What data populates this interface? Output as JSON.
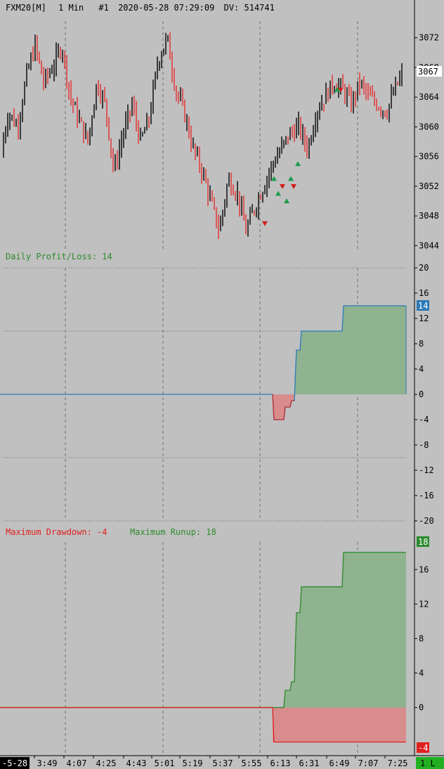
{
  "header": {
    "symbol": "FXM20[M]",
    "interval": "1 Min",
    "chart_no": "#1",
    "datetime": "2020-05-28 07:29:09",
    "dv_label": "DV: 514741"
  },
  "colors": {
    "background": "#c0c0c0",
    "bull": "#1a1a1a",
    "bear": "#e04040",
    "green": "#2d8a2d",
    "red": "#e02020",
    "green_fill": "#8fb28f",
    "red_fill": "#d98c8c",
    "blue": "#2a7ab8",
    "grid": "#8a8a8a"
  },
  "time_axis": {
    "labels": [
      "3:49",
      "4:07",
      "4:25",
      "4:43",
      "5:01",
      "5:19",
      "5:37",
      "5:55",
      "6:13",
      "6:31",
      "6:49",
      "7:07",
      "7:25"
    ],
    "date_badge": "-5-28",
    "position_badge": "1 L"
  },
  "chart_data": [
    {
      "type": "candlestick",
      "title": "FXM20[M] 1 Min #1 2020-05-28 07:29:09 DV: 514741",
      "ylim": [
        3043,
        3075
      ],
      "yticks": [
        3044,
        3048,
        3052,
        3056,
        3060,
        3064,
        3068,
        3072
      ],
      "last_price": 3067,
      "last_price_label": "3067",
      "close_path": [
        [
          0,
          3056
        ],
        [
          12,
          3062
        ],
        [
          25,
          3060
        ],
        [
          38,
          3067
        ],
        [
          50,
          3071
        ],
        [
          62,
          3066
        ],
        [
          75,
          3068
        ],
        [
          88,
          3071
        ],
        [
          100,
          3064
        ],
        [
          112,
          3061
        ],
        [
          125,
          3058
        ],
        [
          138,
          3066
        ],
        [
          150,
          3063
        ],
        [
          162,
          3054
        ],
        [
          175,
          3059
        ],
        [
          188,
          3063
        ],
        [
          200,
          3058
        ],
        [
          212,
          3061
        ],
        [
          225,
          3069
        ],
        [
          238,
          3072
        ],
        [
          250,
          3065
        ],
        [
          262,
          3062
        ],
        [
          275,
          3057
        ],
        [
          288,
          3054
        ],
        [
          300,
          3050
        ],
        [
          312,
          3046
        ],
        [
          325,
          3053
        ],
        [
          338,
          3051
        ],
        [
          350,
          3046
        ],
        [
          362,
          3049
        ],
        [
          375,
          3052
        ],
        [
          388,
          3055
        ],
        [
          400,
          3057
        ],
        [
          412,
          3059
        ],
        [
          425,
          3060
        ],
        [
          438,
          3057
        ],
        [
          450,
          3062
        ],
        [
          462,
          3064
        ],
        [
          475,
          3066
        ],
        [
          488,
          3065
        ],
        [
          500,
          3063
        ],
        [
          512,
          3066
        ],
        [
          525,
          3064
        ],
        [
          538,
          3063
        ],
        [
          550,
          3062
        ],
        [
          562,
          3065
        ],
        [
          572,
          3067
        ]
      ]
    },
    {
      "type": "area",
      "title": "Daily Profit/Loss: 14",
      "title_label": "Daily Profit/Loss: 14",
      "ylim": [
        -20,
        20
      ],
      "yticks": [
        20,
        16,
        12,
        8,
        4,
        0,
        -4,
        -8,
        -12,
        -16,
        -20
      ],
      "last_value": 14,
      "last_value_label": "14",
      "steps": [
        [
          0,
          0
        ],
        [
          388,
          0
        ],
        [
          390,
          -4
        ],
        [
          404,
          -4
        ],
        [
          406,
          -2
        ],
        [
          413,
          -2
        ],
        [
          415,
          -1
        ],
        [
          419,
          -1
        ],
        [
          420,
          2
        ],
        [
          422,
          7
        ],
        [
          427,
          7
        ],
        [
          429,
          10
        ],
        [
          487,
          10
        ],
        [
          489,
          14
        ],
        [
          578,
          14
        ]
      ]
    },
    {
      "type": "area",
      "title": "Maximum Drawdown: -4 Maximum Runup: 18",
      "drawdown_label": "Maximum Drawdown: -4",
      "runup_label": "Maximum Runup: 18",
      "ylim": [
        -4.6,
        19.2
      ],
      "yticks": [
        16,
        12,
        8,
        4,
        0
      ],
      "max_drawdown": -4,
      "max_runup": 18,
      "runup_badge": "18",
      "drawdown_badge": "-4",
      "runup_steps": [
        [
          0,
          0
        ],
        [
          404,
          0
        ],
        [
          406,
          2
        ],
        [
          413,
          2
        ],
        [
          415,
          3
        ],
        [
          419,
          3
        ],
        [
          420,
          6
        ],
        [
          422,
          11
        ],
        [
          427,
          11
        ],
        [
          429,
          14
        ],
        [
          487,
          14
        ],
        [
          489,
          18
        ],
        [
          578,
          18
        ]
      ],
      "drawdown_steps": [
        [
          0,
          0
        ],
        [
          388,
          0
        ],
        [
          390,
          -4
        ],
        [
          578,
          -4
        ]
      ]
    }
  ]
}
